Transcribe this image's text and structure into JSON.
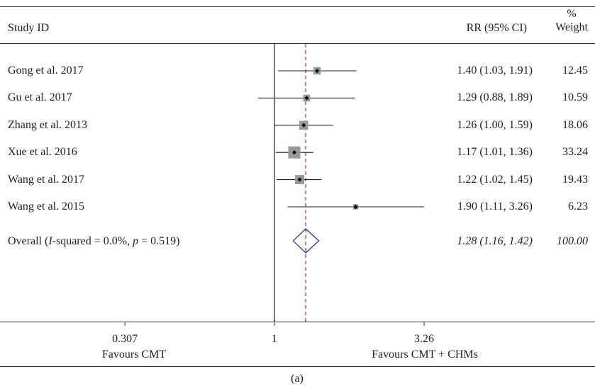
{
  "header": {
    "study_id_label": "Study ID",
    "rr_label": "RR (95% CI)",
    "weight_label_line1": "%",
    "weight_label_line2": "Weight"
  },
  "chart_data": {
    "type": "forest",
    "x_scale": "log",
    "x_ticks": [
      {
        "value": 0.307,
        "label": "0.307"
      },
      {
        "value": 1,
        "label": "1"
      },
      {
        "value": 3.26,
        "label": "3.26"
      }
    ],
    "null_line": 1,
    "overall_line": 1.28,
    "studies": [
      {
        "name": "Gong et al. 2017",
        "rr": 1.4,
        "lo": 1.03,
        "hi": 1.91,
        "rr_text": "1.40 (1.03, 1.91)",
        "weight": 12.45,
        "weight_text": "12.45"
      },
      {
        "name": "Gu et al. 2017",
        "rr": 1.29,
        "lo": 0.88,
        "hi": 1.89,
        "rr_text": "1.29 (0.88, 1.89)",
        "weight": 10.59,
        "weight_text": "10.59"
      },
      {
        "name": "Zhang et al. 2013",
        "rr": 1.26,
        "lo": 1.0,
        "hi": 1.59,
        "rr_text": "1.26 (1.00, 1.59)",
        "weight": 18.06,
        "weight_text": "18.06"
      },
      {
        "name": "Xue et al. 2016",
        "rr": 1.17,
        "lo": 1.01,
        "hi": 1.36,
        "rr_text": "1.17 (1.01, 1.36)",
        "weight": 33.24,
        "weight_text": "33.24"
      },
      {
        "name": "Wang et al. 2017",
        "rr": 1.22,
        "lo": 1.02,
        "hi": 1.45,
        "rr_text": "1.22 (1.02, 1.45)",
        "weight": 19.43,
        "weight_text": "19.43"
      },
      {
        "name": "Wang et al. 2015",
        "rr": 1.9,
        "lo": 1.11,
        "hi": 3.26,
        "rr_text": "1.90 (1.11, 3.26)",
        "weight": 6.23,
        "weight_text": "6.23"
      }
    ],
    "overall": {
      "label_prefix": "Overall (",
      "label_i": "I",
      "label_mid": "-squared = 0.0%, ",
      "label_p": "p",
      "label_suffix": " = 0.519)",
      "rr": 1.28,
      "lo": 1.16,
      "hi": 1.42,
      "rr_text": "1.28 (1.16, 1.42)",
      "weight_text": "100.00"
    },
    "favours_left": "Favours CMT",
    "favours_right": "Favours CMT + CHMs",
    "colors": {
      "ci": "#222222",
      "box": "#999999",
      "diamond": "#2a2a8a",
      "overall_line": "#a03040"
    }
  },
  "caption": "(a)"
}
